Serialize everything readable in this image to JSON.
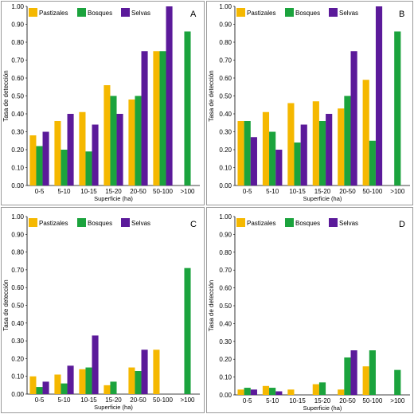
{
  "colors": {
    "Pastizales": "#F5B800",
    "Bosques": "#1BA33D",
    "Selvas": "#5B1A9A"
  },
  "chart_data": [
    {
      "type": "bar",
      "panel_label": "A",
      "categories": [
        "0-5",
        "5-10",
        "10-15",
        "15-20",
        "20-50",
        "50-100",
        ">100"
      ],
      "series": [
        {
          "name": "Pastizales",
          "values": [
            0.28,
            0.36,
            0.41,
            0.56,
            0.48,
            0.75,
            null
          ]
        },
        {
          "name": "Bosques",
          "values": [
            0.22,
            0.2,
            0.19,
            0.5,
            0.5,
            0.75,
            0.86
          ]
        },
        {
          "name": "Selvas",
          "values": [
            0.3,
            0.4,
            0.34,
            0.4,
            0.75,
            1.0,
            null
          ]
        }
      ],
      "xlabel": "Superficie (ha)",
      "ylabel": "Tasa de detección",
      "ylim": [
        0,
        1
      ],
      "yticks": [
        "0.00",
        "0.10",
        "0.20",
        "0.30",
        "0.40",
        "0.50",
        "0.60",
        "0.70",
        "0.80",
        "0.90",
        "1.00"
      ],
      "legend": "top-left"
    },
    {
      "type": "bar",
      "panel_label": "B",
      "categories": [
        "0-5",
        "5-10",
        "10-15",
        "15-20",
        "20-50",
        "50-100",
        ">100"
      ],
      "series": [
        {
          "name": "Pastizales",
          "values": [
            0.36,
            0.41,
            0.46,
            0.47,
            0.43,
            0.59,
            null
          ]
        },
        {
          "name": "Bosques",
          "values": [
            0.36,
            0.3,
            0.24,
            0.36,
            0.5,
            0.25,
            0.86
          ]
        },
        {
          "name": "Selvas",
          "values": [
            0.27,
            0.2,
            0.34,
            0.4,
            0.75,
            1.0,
            null
          ]
        }
      ],
      "xlabel": "Superficie (ha)",
      "ylabel": "Tasa de detección",
      "ylim": [
        0,
        1
      ],
      "yticks": [
        "0.00",
        "0.10",
        "0.20",
        "0.30",
        "0.40",
        "0.50",
        "0.60",
        "0.70",
        "0.80",
        "0.90",
        "1.00"
      ],
      "legend": "top-left"
    },
    {
      "type": "bar",
      "panel_label": "C",
      "categories": [
        "0-5",
        "5-10",
        "10-15",
        "15-20",
        "20-50",
        "50-100",
        ">100"
      ],
      "series": [
        {
          "name": "Pastizales",
          "values": [
            0.1,
            0.11,
            0.14,
            0.05,
            0.15,
            0.25,
            null
          ]
        },
        {
          "name": "Bosques",
          "values": [
            0.04,
            0.06,
            0.15,
            0.07,
            0.13,
            null,
            0.71
          ]
        },
        {
          "name": "Selvas",
          "values": [
            0.07,
            0.16,
            0.33,
            null,
            0.25,
            null,
            null
          ]
        }
      ],
      "xlabel": "Superficie (ha)",
      "ylabel": "Tasa de detección",
      "ylim": [
        0,
        1
      ],
      "yticks": [
        "0.00",
        "0.10",
        "0.20",
        "0.30",
        "0.40",
        "0.50",
        "0.60",
        "0.70",
        "0.80",
        "0.90",
        "1.00"
      ],
      "legend": "top-left"
    },
    {
      "type": "bar",
      "panel_label": "D",
      "categories": [
        "0-5",
        "5-10",
        "10-15",
        "15-20",
        "20-50",
        "50-100",
        ">100"
      ],
      "series": [
        {
          "name": "Pastizales",
          "values": [
            0.03,
            0.05,
            0.03,
            0.06,
            0.03,
            0.16,
            null
          ]
        },
        {
          "name": "Bosques",
          "values": [
            0.04,
            0.04,
            null,
            0.07,
            0.21,
            0.25,
            0.14
          ]
        },
        {
          "name": "Selvas",
          "values": [
            0.03,
            0.02,
            null,
            null,
            0.25,
            null,
            null
          ]
        }
      ],
      "xlabel": "Superficie (ha)",
      "ylabel": "Tasa de detección",
      "ylim": [
        0,
        1
      ],
      "yticks": [
        "0.00",
        "0.10",
        "0.20",
        "0.30",
        "0.40",
        "0.50",
        "0.60",
        "0.70",
        "0.80",
        "0.90",
        "1.00"
      ],
      "legend": "top-left"
    }
  ]
}
